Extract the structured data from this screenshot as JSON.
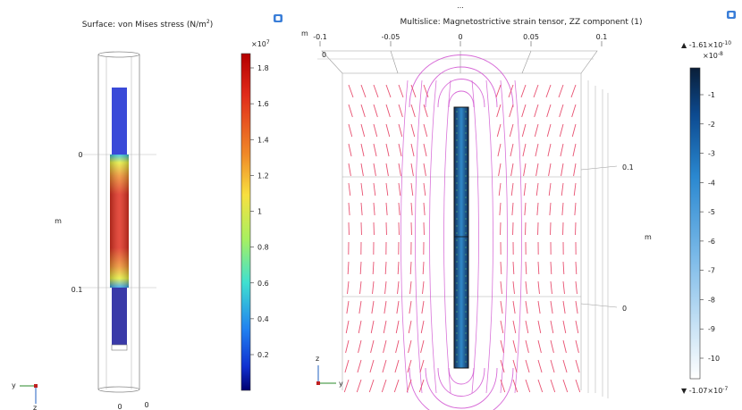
{
  "left_plot": {
    "title": "Surface: von Mises stress (N/m",
    "title_sup": "2",
    "title_end": ")",
    "axis_unit": "m",
    "axis_ticks": [
      "0",
      "0.1"
    ],
    "bottom_tick": "0",
    "bottom_tick2": "0",
    "triad": {
      "y": "y",
      "z": "z"
    },
    "colorbar": {
      "exponent_base": "×10",
      "exponent_power": "7",
      "ticks": [
        "1.8",
        "1.6",
        "1.4",
        "1.2",
        "1",
        "0.8",
        "0.6",
        "0.4",
        "0.2"
      ],
      "colors": [
        "#b40000",
        "#e03020",
        "#f07020",
        "#f8b030",
        "#f0f040",
        "#90f070",
        "#40e0d0",
        "#2090f0",
        "#1040e0",
        "#000080"
      ]
    }
  },
  "right_plot": {
    "dots": "...",
    "title": "Multislice: Magnetostrictive strain tensor, ZZ component (1)",
    "x_axis_unit": "m",
    "x_ticks": [
      "-0.1",
      "-0.05",
      "0",
      "0.05",
      "0.1"
    ],
    "inner_zero": "0",
    "side_ticks": [
      "0.1",
      "0"
    ],
    "side_unit": "m",
    "triad": {
      "z": "z",
      "y": "y"
    },
    "colorbar": {
      "max_label_base": "▲ -1.61×10",
      "max_label_power": "-10",
      "exponent_base": "×10",
      "exponent_power": "-8",
      "ticks": [
        "-1",
        "-2",
        "-3",
        "-4",
        "-5",
        "-6",
        "-7",
        "-8",
        "-9",
        "-10"
      ],
      "min_label_base": "▼ -1.07×10",
      "min_label_power": "-7",
      "colors": [
        "#0a2040",
        "#1060b0",
        "#3090d8",
        "#70b8e8",
        "#b8dcf4",
        "#ffffff"
      ]
    }
  },
  "toolbar": {
    "left_icon": "camera-icon",
    "right_icon": "camera-icon"
  }
}
